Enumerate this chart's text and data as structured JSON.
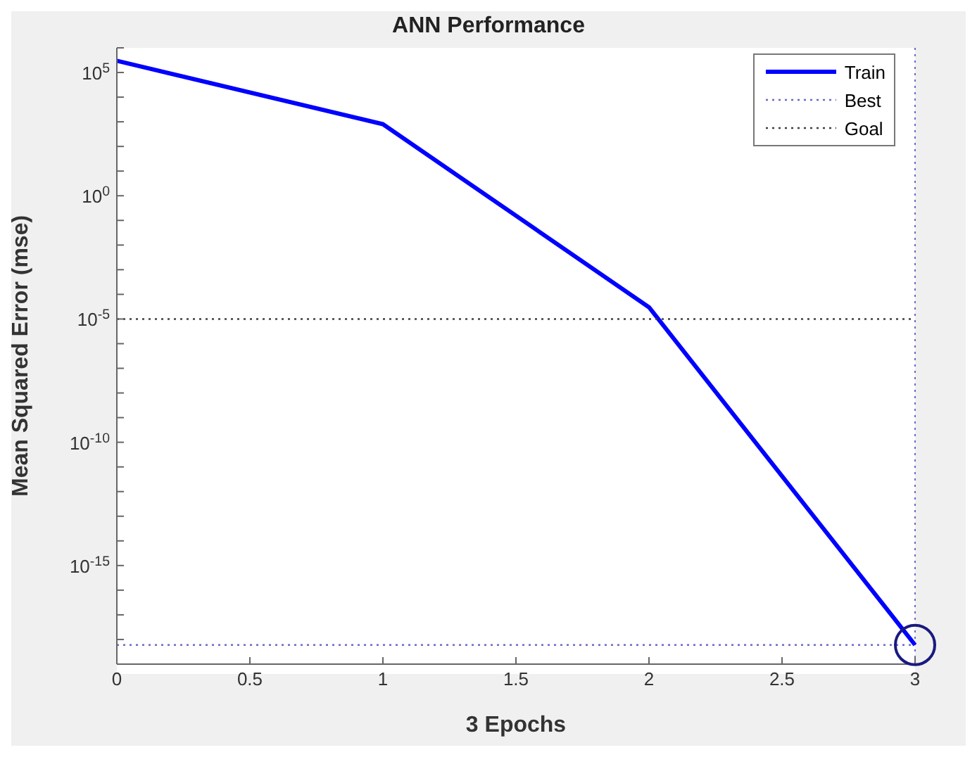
{
  "chart_data": {
    "type": "line",
    "title": "ANN Performance",
    "xlabel": "3 Epochs",
    "ylabel": "Mean Squared Error  (mse)",
    "log": "y",
    "xlim": [
      0,
      3
    ],
    "ylim": [
      1e-19,
      1000000
    ],
    "xticks": [
      0,
      0.5,
      1,
      1.5,
      2,
      2.5,
      3
    ],
    "yticks": [
      {
        "value": 1e-19,
        "label": null
      },
      {
        "value": 1e-18,
        "label": null
      },
      {
        "value": 1e-17,
        "label": null
      },
      {
        "value": 1e-16,
        "label": null
      },
      {
        "value": 1e-15,
        "label": "10$^{-15}$"
      },
      {
        "value": 1e-14,
        "label": null
      },
      {
        "value": 1e-13,
        "label": null
      },
      {
        "value": 1e-12,
        "label": null
      },
      {
        "value": 1e-11,
        "label": null
      },
      {
        "value": 1e-10,
        "label": "10$^{-10}$"
      },
      {
        "value": 1e-09,
        "label": null
      },
      {
        "value": 1e-08,
        "label": null
      },
      {
        "value": 1e-07,
        "label": null
      },
      {
        "value": 1e-06,
        "label": null
      },
      {
        "value": 1e-05,
        "label": "10$^{-5}$"
      },
      {
        "value": 0.0001,
        "label": null
      },
      {
        "value": 0.001,
        "label": null
      },
      {
        "value": 0.01,
        "label": null
      },
      {
        "value": 0.1,
        "label": null
      },
      {
        "value": 1,
        "label": "10$^{0}$"
      },
      {
        "value": 10,
        "label": null
      },
      {
        "value": 100,
        "label": null
      },
      {
        "value": 1000,
        "label": null
      },
      {
        "value": 10000,
        "label": null
      },
      {
        "value": 100000,
        "label": "10$^{5}$"
      },
      {
        "value": 1000000,
        "label": null
      }
    ],
    "grid": false,
    "legend": "top right",
    "marker": "none",
    "ref_lines": [
      {
        "axis": "x",
        "value": 3,
        "color": "#6a6ac8",
        "line_style": "dotted"
      }
    ],
    "series": [
      {
        "name": "Train",
        "color": "#0000ff",
        "line_style": "solid",
        "x": [
          0,
          1,
          2,
          3
        ],
        "values": [
          300000,
          800,
          3e-05,
          6e-19
        ]
      },
      {
        "name": "Best",
        "color": "#6a6ac8",
        "line_style": "dotted",
        "x": [
          0,
          3
        ],
        "values": [
          6e-19,
          6e-19
        ]
      },
      {
        "name": "Goal",
        "color": "#404040",
        "line_style": "dotted",
        "x": [
          0,
          3
        ],
        "values": [
          1e-05,
          1e-05
        ]
      },
      {
        "type": "scatter",
        "color": "#1a1a80",
        "marker": "circle",
        "x": [
          3
        ],
        "values": [
          6e-19
        ]
      }
    ]
  }
}
